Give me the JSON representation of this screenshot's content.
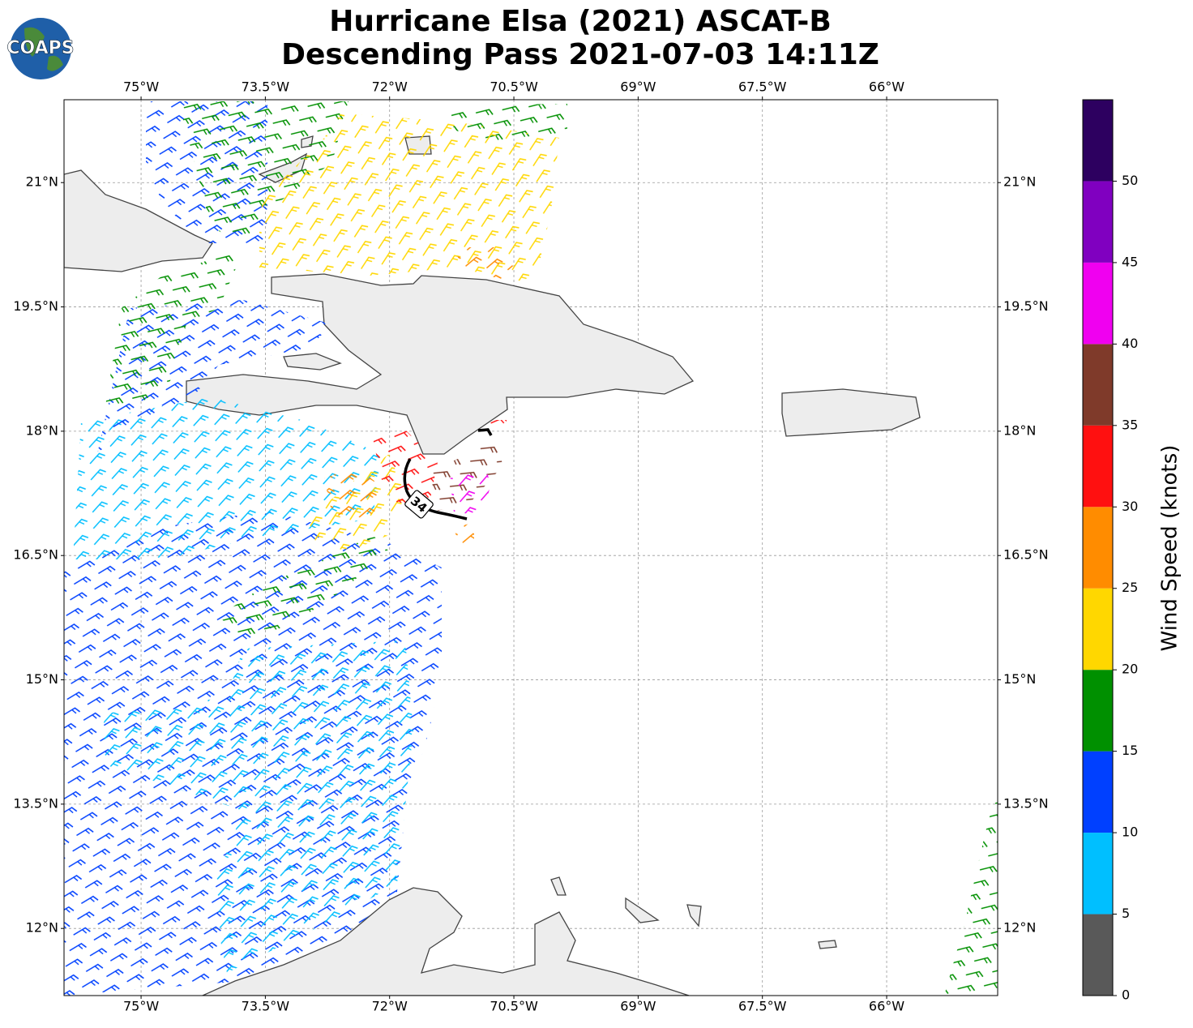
{
  "chart_data": {
    "type": "map",
    "title": [
      "Hurricane Elsa (2021) ASCAT-B",
      "Descending Pass 2021-07-03 14:11Z"
    ],
    "logo": "COAPS",
    "xlim": [
      -75.93,
      -64.66
    ],
    "ylim": [
      11.19,
      22.0
    ],
    "xticks": [
      {
        "value": -75,
        "label": "75°W"
      },
      {
        "value": -73.5,
        "label": "73.5°W"
      },
      {
        "value": -72,
        "label": "72°W"
      },
      {
        "value": -70.5,
        "label": "70.5°W"
      },
      {
        "value": -69,
        "label": "69°W"
      },
      {
        "value": -67.5,
        "label": "67.5°W"
      },
      {
        "value": -66,
        "label": "66°W"
      }
    ],
    "yticks": [
      {
        "value": 21,
        "label": "21°N"
      },
      {
        "value": 19.5,
        "label": "19.5°N"
      },
      {
        "value": 18,
        "label": "18°N"
      },
      {
        "value": 16.5,
        "label": "16.5°N"
      },
      {
        "value": 15,
        "label": "15°N"
      },
      {
        "value": 13.5,
        "label": "13.5°N"
      },
      {
        "value": 12,
        "label": "12°N"
      }
    ],
    "grid": true,
    "contour_label": "34",
    "colorbar": {
      "label": "Wind Speed (knots)",
      "lim": [
        0,
        55
      ],
      "ticks": [
        0,
        5,
        10,
        15,
        20,
        25,
        30,
        35,
        40,
        45,
        50
      ],
      "bounds": [
        0,
        5,
        10,
        15,
        20,
        25,
        30,
        35,
        40,
        45,
        50,
        55
      ],
      "colors": [
        "#595959",
        "#00bfff",
        "#0040ff",
        "#009000",
        "#ffd700",
        "#ff8c00",
        "#ff1010",
        "#7f3a2a",
        "#f000f0",
        "#8000c0",
        "#2d0060"
      ]
    }
  }
}
